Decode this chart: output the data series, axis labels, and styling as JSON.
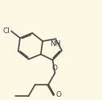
{
  "background_color": "#fdf8e4",
  "bond_color": "#404040",
  "atom_color": "#404040",
  "lw": 1.15,
  "fs_label": 6.5,
  "fs_nh": 6.5,
  "xlim": [
    -1,
    11
  ],
  "ylim": [
    -0.5,
    10.5
  ]
}
